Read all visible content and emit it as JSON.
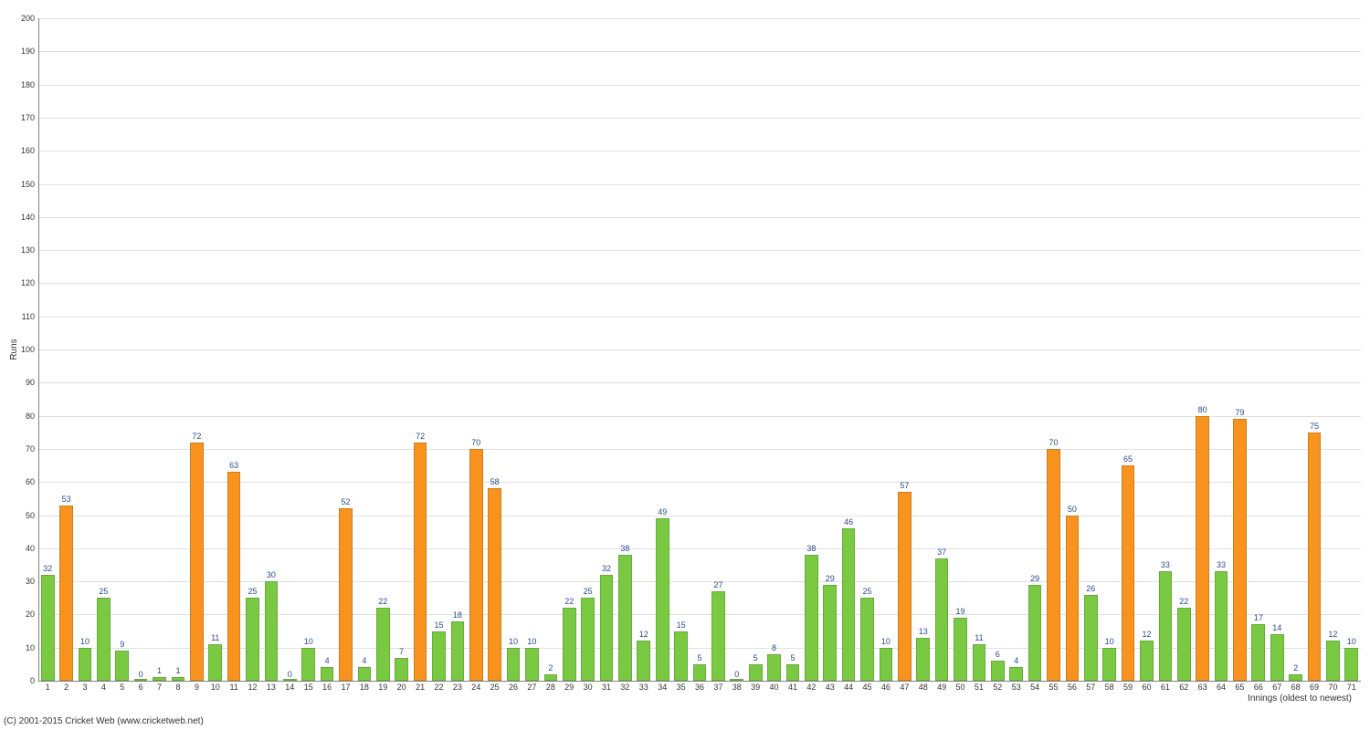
{
  "chart": {
    "type": "bar",
    "ylabel": "Runs",
    "xlabel": "Innings (oldest to newest)",
    "ylim": [
      0,
      200
    ],
    "ytick_step": 10,
    "xrange": [
      1,
      70
    ],
    "background_color": "#ffffff",
    "grid_color": "#e0e0e0",
    "axis_color": "#808080",
    "label_color": "#2a4b8d",
    "tick_fontsize": 9,
    "bar_label_fontsize": 9,
    "axis_title_fontsize": 10,
    "colors": {
      "green": "#7ac943",
      "orange": "#f7931e"
    },
    "bar_width_ratio": 0.72,
    "values": [
      32,
      53,
      10,
      25,
      9,
      0,
      1,
      1,
      72,
      11,
      63,
      25,
      30,
      0,
      10,
      4,
      52,
      4,
      22,
      7,
      72,
      15,
      18,
      70,
      58,
      10,
      10,
      2,
      22,
      25,
      32,
      38,
      12,
      49,
      15,
      5,
      27,
      0,
      5,
      8,
      5,
      38,
      29,
      46,
      25,
      10,
      57,
      13,
      37,
      19,
      11,
      6,
      4,
      29,
      70,
      50,
      26,
      10,
      65,
      12,
      33,
      22,
      80,
      33,
      79,
      17,
      14,
      2,
      75,
      12,
      10
    ],
    "bar_colors": [
      "green",
      "orange",
      "green",
      "green",
      "green",
      "green",
      "green",
      "green",
      "orange",
      "green",
      "orange",
      "green",
      "green",
      "green",
      "green",
      "green",
      "orange",
      "green",
      "green",
      "green",
      "orange",
      "green",
      "green",
      "orange",
      "orange",
      "green",
      "green",
      "green",
      "green",
      "green",
      "green",
      "green",
      "green",
      "green",
      "green",
      "green",
      "green",
      "green",
      "green",
      "green",
      "green",
      "green",
      "green",
      "green",
      "green",
      "green",
      "orange",
      "green",
      "green",
      "green",
      "green",
      "green",
      "green",
      "green",
      "orange",
      "orange",
      "green",
      "green",
      "orange",
      "green",
      "green",
      "green",
      "orange",
      "green",
      "orange",
      "green",
      "green",
      "green",
      "orange",
      "green",
      "green"
    ]
  },
  "copyright": "(C) 2001-2015 Cricket Web (www.cricketweb.net)"
}
